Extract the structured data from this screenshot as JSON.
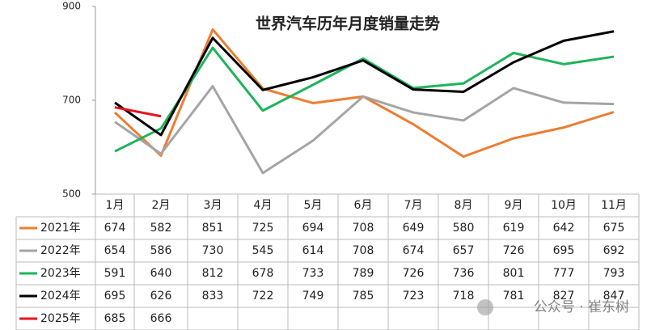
{
  "chart_data": {
    "type": "line",
    "title": "世界汽车历年月度销量走势",
    "categories": [
      "1月",
      "2月",
      "3月",
      "4月",
      "5月",
      "6月",
      "7月",
      "8月",
      "9月",
      "10月",
      "11月"
    ],
    "series": [
      {
        "name": "2021年",
        "color": "#ed7d31",
        "values": [
          674,
          582,
          851,
          725,
          694,
          708,
          649,
          580,
          619,
          642,
          675
        ]
      },
      {
        "name": "2022年",
        "color": "#a5a5a5",
        "values": [
          654,
          586,
          730,
          545,
          614,
          708,
          674,
          657,
          726,
          695,
          692
        ]
      },
      {
        "name": "2023年",
        "color": "#1eb45a",
        "values": [
          591,
          640,
          812,
          678,
          733,
          789,
          726,
          736,
          801,
          777,
          793
        ]
      },
      {
        "name": "2024年",
        "color": "#000000",
        "values": [
          695,
          626,
          833,
          722,
          749,
          785,
          723,
          718,
          781,
          827,
          847
        ]
      },
      {
        "name": "2025年",
        "color": "#e8141b",
        "values": [
          685,
          666,
          null,
          null,
          null,
          null,
          null,
          null,
          null,
          null,
          null
        ]
      }
    ],
    "ylim": [
      500,
      900
    ],
    "yticks": [
      500,
      700,
      900
    ],
    "grid": false,
    "watermark": "公众号 · 崔东树"
  }
}
